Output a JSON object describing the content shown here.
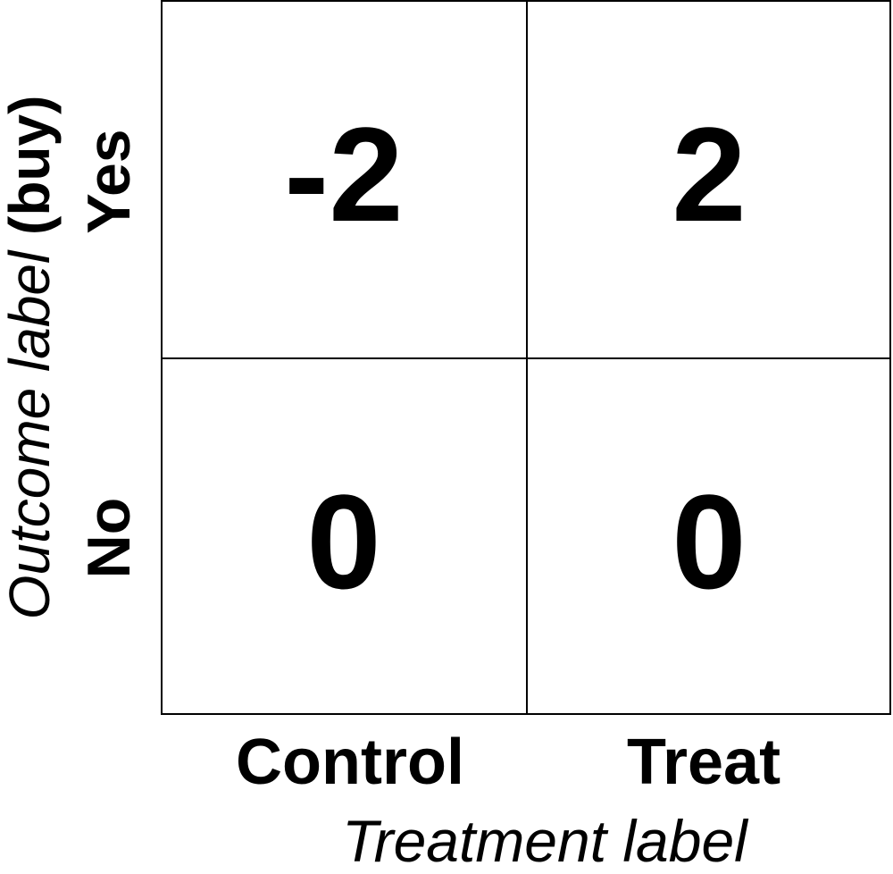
{
  "matrix": {
    "cells": [
      [
        "-2",
        "2"
      ],
      [
        "0",
        "0"
      ]
    ]
  },
  "rows": {
    "labels": [
      "Yes",
      "No"
    ]
  },
  "columns": {
    "labels": [
      "Control",
      "Treat"
    ]
  },
  "axes": {
    "x_title": "Treatment label",
    "y_title_main": "Outcome label",
    "y_title_suffix": "(buy)"
  }
}
